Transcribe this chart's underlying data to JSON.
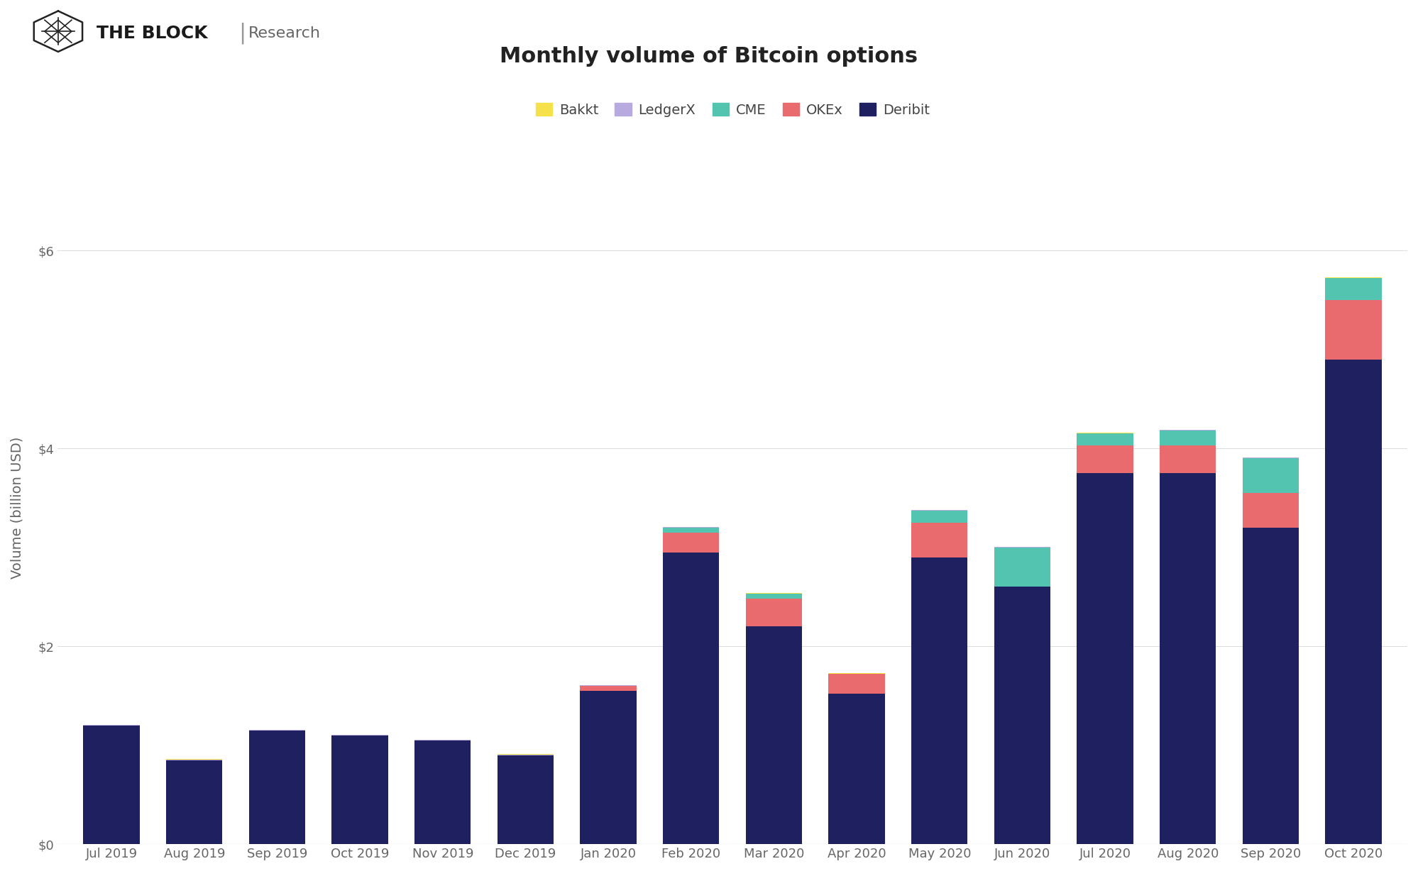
{
  "title": "Monthly volume of Bitcoin options",
  "ylabel": "Volume (billion USD)",
  "background_color": "#ffffff",
  "title_fontsize": 22,
  "label_fontsize": 14,
  "tick_fontsize": 13,
  "categories": [
    "Jul 2019",
    "Aug 2019",
    "Sep 2019",
    "Oct 2019",
    "Nov 2019",
    "Dec 2019",
    "Jan 2020",
    "Feb 2020",
    "Mar 2020",
    "Apr 2020",
    "May 2020",
    "Jun 2020",
    "Jul 2020",
    "Aug 2020",
    "Sep 2020",
    "Oct 2020"
  ],
  "series": {
    "Deribit": [
      1.2,
      0.85,
      1.15,
      1.1,
      1.05,
      0.9,
      1.55,
      2.95,
      2.2,
      1.52,
      2.9,
      2.6,
      3.75,
      3.75,
      3.2,
      4.9
    ],
    "OKEx": [
      0.0,
      0.0,
      0.0,
      0.0,
      0.0,
      0.0,
      0.05,
      0.2,
      0.28,
      0.2,
      0.35,
      0.0,
      0.28,
      0.28,
      0.35,
      0.6
    ],
    "CME": [
      0.0,
      0.0,
      0.0,
      0.0,
      0.0,
      0.0,
      0.0,
      0.05,
      0.05,
      0.0,
      0.12,
      0.4,
      0.12,
      0.15,
      0.35,
      0.22
    ],
    "LedgerX": [
      0.005,
      0.005,
      0.005,
      0.005,
      0.005,
      0.005,
      0.005,
      0.005,
      0.005,
      0.005,
      0.005,
      0.005,
      0.005,
      0.005,
      0.005,
      0.005
    ],
    "Bakkt": [
      0.003,
      0.003,
      0.003,
      0.003,
      0.003,
      0.003,
      0.003,
      0.003,
      0.003,
      0.003,
      0.003,
      0.003,
      0.003,
      0.003,
      0.003,
      0.003
    ]
  },
  "colors": {
    "Bakkt": "#f5e14a",
    "LedgerX": "#b8aadf",
    "CME": "#52c4b0",
    "OKEx": "#e96b6e",
    "Deribit": "#1e2060"
  },
  "ylim": [
    0,
    6.8
  ],
  "yticks": [
    0,
    2,
    4,
    6
  ],
  "ytick_labels": [
    "$0",
    "$2",
    "$4",
    "$6"
  ],
  "grid_color": "#dddddd",
  "layer_order": [
    "Deribit",
    "OKEx",
    "CME",
    "LedgerX",
    "Bakkt"
  ],
  "legend_order": [
    "Bakkt",
    "LedgerX",
    "CME",
    "OKEx",
    "Deribit"
  ]
}
